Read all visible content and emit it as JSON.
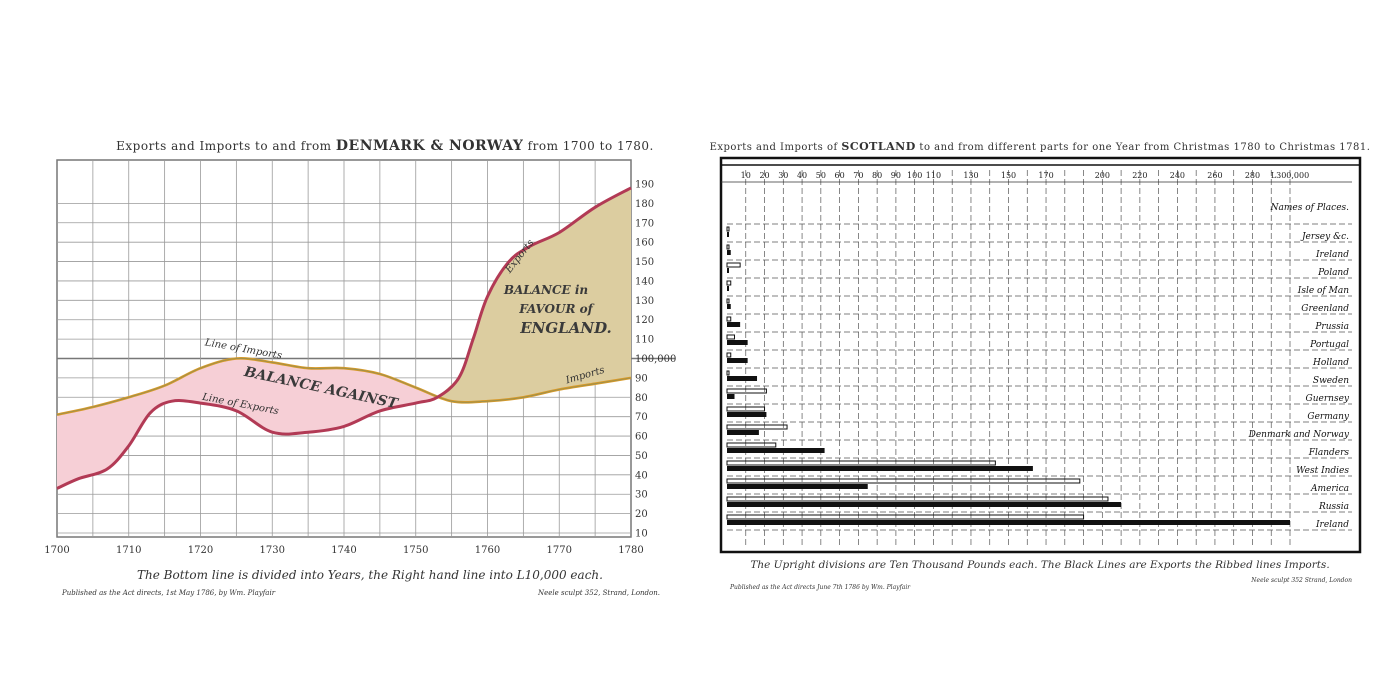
{
  "chart_data": [
    {
      "type": "line",
      "title": "Exports and Imports to and from DENMARK & NORWAY from 1700 to 1780.",
      "title_parts": [
        "Exports and Imports to and from ",
        "DENMARK & NORWAY",
        " from 1700 to 1780."
      ],
      "xlim": [
        1700,
        1780
      ],
      "ylim": [
        10,
        190
      ],
      "x_ticks": [
        1700,
        1710,
        1720,
        1730,
        1740,
        1750,
        1760,
        1770,
        1780
      ],
      "y_ticks": [
        10,
        20,
        30,
        40,
        50,
        60,
        70,
        80,
        90,
        100,
        110,
        120,
        130,
        140,
        150,
        160,
        170,
        180,
        190
      ],
      "y_special_label": "100,000",
      "series": [
        {
          "name": "Imports",
          "color": "#d89a2a",
          "x": [
            1700,
            1705,
            1710,
            1715,
            1720,
            1725,
            1730,
            1735,
            1740,
            1745,
            1750,
            1755,
            1760,
            1765,
            1770,
            1775,
            1780
          ],
          "values": [
            71,
            75,
            80,
            86,
            95,
            100,
            98,
            95,
            95,
            92,
            85,
            78,
            78,
            80,
            84,
            87,
            90
          ]
        },
        {
          "name": "Exports",
          "color": "#b23a55",
          "x": [
            1700,
            1703,
            1707,
            1710,
            1713,
            1716,
            1720,
            1725,
            1730,
            1735,
            1740,
            1745,
            1750,
            1753,
            1756,
            1758,
            1760,
            1763,
            1766,
            1770,
            1775,
            1780
          ],
          "values": [
            33,
            38,
            43,
            55,
            72,
            78,
            77,
            73,
            62,
            62,
            65,
            73,
            77,
            80,
            90,
            110,
            132,
            150,
            158,
            165,
            178,
            188
          ]
        }
      ],
      "annotations": {
        "line_of_imports": "Line of Imports",
        "line_of_exports": "Line of Exports",
        "exports": "Exports",
        "imports": "Imports",
        "balance_against": "BALANCE AGAINST",
        "balance_favour_1": "BALANCE in",
        "balance_favour_2": "FAVOUR of",
        "balance_favour_3": "ENGLAND."
      },
      "caption": "The Bottom line is divided into Years, the Right hand line into L10,000 each.",
      "footer_left": "Published as the Act directs, 1st May 1786, by Wm. Playfair",
      "footer_right": "Neele sculpt 352, Strand, London."
    },
    {
      "type": "bar",
      "title": "Exports and Imports of SCOTLAND to and from different parts for one Year from Christmas 1780 to Christmas 1781.",
      "title_parts": [
        "Exports and Imports of ",
        "SCOTLAND",
        " to and from different parts for one Year from Christmas 1780 to Christmas 1781."
      ],
      "x_ticks": [
        "10",
        "20",
        "30",
        "40",
        "50",
        "60",
        "70",
        "80",
        "90",
        "100",
        "110",
        "130",
        "150",
        "170",
        "200",
        "220",
        "240",
        "260",
        "280",
        "L300,000"
      ],
      "x_tick_values": [
        10,
        20,
        30,
        40,
        50,
        60,
        70,
        80,
        90,
        100,
        110,
        130,
        150,
        170,
        200,
        220,
        240,
        260,
        280,
        300
      ],
      "xlim": [
        0,
        300
      ],
      "header_label": "Names of Places.",
      "categories": [
        "Jersey &c.",
        "Ireland",
        "Poland",
        "Isle of Man",
        "Greenland",
        "Prussia",
        "Portugal",
        "Holland",
        "Sweden",
        "Guernsey",
        "Germany",
        "Denmark and Norway",
        "Flanders",
        "West Indies",
        "America",
        "Russia",
        "Ireland"
      ],
      "series": [
        {
          "name": "Exports",
          "values": [
            0.5,
            2,
            1,
            1,
            2,
            7,
            11,
            11,
            16,
            4,
            21,
            17,
            52,
            163,
            75,
            210,
            300
          ]
        },
        {
          "name": "Imports",
          "values": [
            1,
            1,
            7,
            2,
            1,
            2,
            4,
            2,
            1,
            21,
            20,
            32,
            26,
            143,
            188,
            203,
            190
          ]
        }
      ],
      "caption": "The Upright divisions are Ten Thousand Pounds each. The Black Lines are Exports the Ribbed lines Imports.",
      "footer_left": "Published as the Act directs June 7th 1786 by Wm. Playfair",
      "footer_right": "Neele sculpt 352 Strand, London"
    }
  ]
}
